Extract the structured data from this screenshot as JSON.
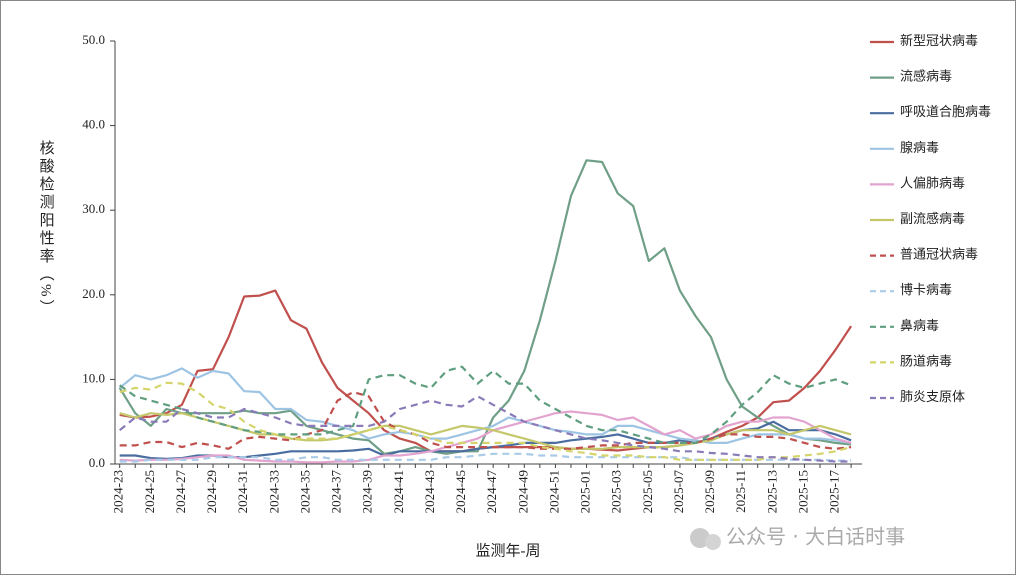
{
  "chart_data": {
    "type": "line",
    "x_label": "监测年-周",
    "y_label": "核酸检测阳性率（%）",
    "watermark": "公众号 · 大白话时事",
    "ylim": [
      0,
      50
    ],
    "yticks": [
      {
        "value": 0,
        "label": "0.0"
      },
      {
        "value": 10,
        "label": "10.0"
      },
      {
        "value": 20,
        "label": "20.0"
      },
      {
        "value": 30,
        "label": "30.0"
      },
      {
        "value": 40,
        "label": "40.0"
      },
      {
        "value": 50,
        "label": "50.0"
      }
    ],
    "legend": "right",
    "categories": [
      "2024-23",
      null,
      "2024-25",
      null,
      "2024-27",
      null,
      "2024-29",
      null,
      "2024-31",
      null,
      "2024-33",
      null,
      "2024-35",
      null,
      "2024-37",
      null,
      "2024-39",
      null,
      "2024-41",
      null,
      "2024-43",
      null,
      "2024-45",
      null,
      "2024-47",
      null,
      "2024-49",
      null,
      "2024-51",
      null,
      "2025-01",
      null,
      "2025-03",
      null,
      "2025-05",
      null,
      "2025-07",
      null,
      "2025-09",
      null,
      "2025-11",
      null,
      "2025-13",
      null,
      "2025-15",
      null,
      "2025-17",
      null
    ],
    "series": [
      {
        "name": "新型冠状病毒",
        "color": "#c0504d",
        "dash": false,
        "values": [
          5.8,
          5.5,
          5.6,
          6,
          7,
          11,
          11.2,
          15,
          19.8,
          19.9,
          20.5,
          17,
          16,
          12,
          9,
          7.5,
          6,
          4,
          3,
          2.5,
          1.5,
          1.5,
          1.5,
          1.8,
          2,
          2,
          2,
          2,
          2,
          1.8,
          1.8,
          1.7,
          1.6,
          1.8,
          2,
          2,
          2.2,
          2.5,
          3,
          3.8,
          4.5,
          5.5,
          7.3,
          7.5,
          9,
          11,
          13.5,
          16.3
        ]
      },
      {
        "name": "流感病毒",
        "color": "#6f9f86",
        "dash": false,
        "values": [
          9,
          6,
          4.5,
          6.5,
          6,
          6,
          6,
          6,
          6.3,
          6,
          6,
          6.3,
          4.5,
          4,
          3.5,
          3,
          2.8,
          1.2,
          1.5,
          2,
          1.5,
          1.2,
          1.5,
          1.5,
          5.5,
          7.5,
          11,
          17,
          24,
          31.7,
          35.9,
          35.7,
          32,
          30.5,
          24,
          25.5,
          20.5,
          17.5,
          15,
          10,
          6.8,
          5.5,
          4.5,
          3.5,
          3,
          2.8,
          2.5,
          2.3
        ]
      },
      {
        "name": "呼吸道合胞病毒",
        "color": "#4a6da0",
        "dash": false,
        "values": [
          1,
          1,
          0.7,
          0.6,
          0.7,
          1,
          1,
          0.8,
          0.8,
          1,
          1.2,
          1.5,
          1.5,
          1.5,
          1.5,
          1.6,
          1.8,
          1,
          1.5,
          1.5,
          1.5,
          1.5,
          1.5,
          1.8,
          2,
          2.2,
          2.5,
          2.5,
          2.5,
          2.8,
          3,
          3.2,
          3.5,
          3,
          2.5,
          2.5,
          2.8,
          2.5,
          3,
          3.5,
          4,
          4.2,
          5,
          4,
          4,
          4,
          3.5,
          2.8
        ]
      },
      {
        "name": "腺病毒",
        "color": "#9ec4e4",
        "dash": false,
        "values": [
          9,
          10.5,
          10,
          10.5,
          11.3,
          10.2,
          11,
          10.7,
          8.6,
          8.5,
          6.5,
          6.5,
          5.2,
          5,
          4.5,
          4,
          3,
          3.5,
          3.8,
          3.5,
          3,
          3,
          3.5,
          4,
          4.5,
          5.5,
          5,
          4.5,
          4,
          3.8,
          3.5,
          3.5,
          4.5,
          4.5,
          4,
          3.5,
          3,
          2.8,
          2.5,
          2.5,
          3,
          3.5,
          3.5,
          3.5,
          3,
          3,
          2.8,
          2.5
        ]
      },
      {
        "name": "人偏肺病毒",
        "color": "#e3a3cf",
        "dash": false,
        "values": [
          0.5,
          0.4,
          0.5,
          0.5,
          0.6,
          0.8,
          1,
          1,
          0.5,
          0.4,
          0.3,
          0.3,
          0.2,
          0.2,
          0.3,
          0.3,
          0.5,
          1,
          1,
          1.2,
          1.5,
          2,
          2.5,
          3,
          4,
          4.5,
          5,
          5.5,
          6,
          6.2,
          6,
          5.8,
          5.2,
          5.5,
          4.5,
          3.5,
          4,
          3,
          3.5,
          4.5,
          5,
          5,
          5.5,
          5.5,
          5,
          4,
          3,
          2.5
        ]
      },
      {
        "name": "副流感病毒",
        "color": "#c4c86a",
        "dash": false,
        "values": [
          6,
          5.5,
          6,
          5.8,
          6,
          5.5,
          5,
          4.5,
          4,
          3.5,
          3.5,
          3,
          2.8,
          2.8,
          3,
          3.5,
          4,
          4.5,
          4.5,
          4,
          3.5,
          4,
          4.5,
          4.3,
          4,
          3.5,
          3,
          2.5,
          2,
          1.8,
          1.8,
          1.8,
          2,
          2,
          2,
          2,
          2.2,
          2.5,
          2.8,
          3.5,
          4,
          4,
          4,
          3.5,
          4,
          4.5,
          4,
          3.5
        ]
      },
      {
        "name": "普通冠状病毒",
        "color": "#c0504d",
        "dash": true,
        "values": [
          2.2,
          2.2,
          2.6,
          2.6,
          2,
          2.5,
          2.2,
          1.8,
          3,
          3.2,
          3,
          2.8,
          3.5,
          4,
          7.5,
          8.5,
          8,
          5,
          4,
          3.5,
          2.5,
          2,
          2,
          2,
          2,
          2,
          2,
          1.8,
          1.8,
          1.8,
          2,
          2.2,
          2.2,
          2.5,
          2.5,
          2.5,
          2.5,
          2.5,
          3,
          3.5,
          3.5,
          3.2,
          3.2,
          3,
          2.5,
          2,
          1.8,
          2
        ]
      },
      {
        "name": "博卡病毒",
        "color": "#a9cbe8",
        "dash": true,
        "values": [
          0.3,
          0.3,
          0.5,
          0.5,
          0.5,
          0.5,
          0.8,
          0.8,
          0.8,
          0.8,
          0.5,
          0.5,
          0.8,
          0.8,
          0.5,
          0.5,
          0.5,
          0.5,
          0.5,
          0.5,
          0.5,
          0.8,
          0.8,
          1,
          1.2,
          1.2,
          1.2,
          1,
          1,
          0.8,
          0.8,
          0.8,
          0.8,
          0.8,
          0.8,
          0.8,
          0.8,
          0.5,
          0.5,
          0.5,
          0.5,
          0.5,
          0.5,
          0.5,
          0.5,
          0.5,
          0.4,
          0.4
        ]
      },
      {
        "name": "鼻病毒",
        "color": "#5f9e7f",
        "dash": true,
        "values": [
          9.3,
          8,
          7.5,
          7,
          6.5,
          5.5,
          5,
          4.5,
          4,
          3.8,
          3.5,
          3.5,
          3.5,
          3.5,
          4,
          4.5,
          10,
          10.5,
          10.5,
          9.5,
          9,
          11,
          11.5,
          9.5,
          11,
          9.5,
          9.5,
          7.5,
          6.5,
          5.5,
          4.5,
          4,
          4,
          3.5,
          3,
          2.5,
          2.5,
          2.5,
          3.5,
          5,
          7,
          8.5,
          10.5,
          9.5,
          9,
          9.5,
          10,
          9.3
        ]
      },
      {
        "name": "肠道病毒",
        "color": "#d4d46a",
        "dash": true,
        "values": [
          8.5,
          9,
          8.8,
          9.6,
          9.5,
          8.5,
          7,
          6.5,
          5,
          4,
          3.5,
          3,
          3,
          3,
          3,
          3.5,
          4,
          4.5,
          4,
          3.5,
          3,
          2.5,
          2.5,
          2.5,
          2.5,
          2.5,
          2.5,
          2,
          1.8,
          1.5,
          1.3,
          1,
          1,
          1,
          0.8,
          0.8,
          0.5,
          0.5,
          0.5,
          0.5,
          0.5,
          0.5,
          0.8,
          0.8,
          1,
          1.2,
          1.5,
          2
        ]
      },
      {
        "name": "肺炎支原体",
        "color": "#8a7bb8",
        "dash": true,
        "values": [
          4,
          5.5,
          5,
          5,
          6.5,
          6,
          5.5,
          5.5,
          6.5,
          6,
          5.5,
          4.8,
          4.5,
          4.5,
          4.5,
          4.5,
          4.5,
          5,
          6.5,
          7,
          7.5,
          7,
          6.8,
          8,
          7,
          6,
          5,
          4.5,
          4,
          3.5,
          3,
          2.8,
          2.5,
          2.2,
          2,
          1.8,
          1.5,
          1.5,
          1.3,
          1.2,
          1,
          0.8,
          0.8,
          0.6,
          0.5,
          0.4,
          0.3,
          0.3
        ]
      }
    ]
  }
}
